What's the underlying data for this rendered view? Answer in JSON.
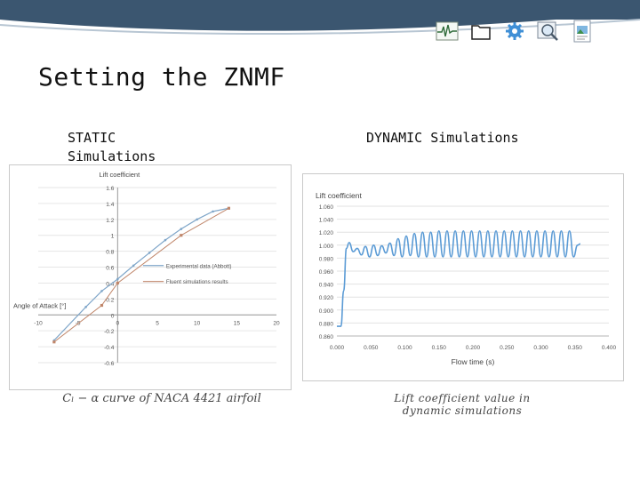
{
  "slide": {
    "title": "Setting the ZNMF",
    "static_heading_line1": "STATIC",
    "static_heading_line2": "Simulations",
    "dynamic_heading": "DYNAMIC Simulations",
    "static_caption": "Cₗ − α  curve of NACA 4421 airfoil",
    "dynamic_caption_line1": "Lift coefficient value in",
    "dynamic_caption_line2": "dynamic simulations"
  },
  "toolbar": {
    "icons": [
      "pulse-monitor-icon",
      "folder-icon",
      "gear-icon",
      "magnifier-icon",
      "document-image-icon"
    ]
  },
  "colors": {
    "header_band": "#3b5670",
    "series_experimental": "#7fa6c9",
    "series_fluent": "#c0866a",
    "series_dynamic": "#5b9bd5"
  },
  "chart_data": [
    {
      "type": "line",
      "ylabel": "Lift coefficient",
      "xlabel": "Angle of Attack [°]",
      "xlim": [
        -10,
        20
      ],
      "ylim": [
        -0.6,
        1.6
      ],
      "x_ticks": [
        "-10",
        "-5",
        "0",
        "5",
        "10",
        "15",
        "20"
      ],
      "y_ticks": [
        "1.6",
        "1.4",
        "1.2",
        "1",
        "0.8",
        "0.6",
        "0.4",
        "0.2",
        "0",
        "-0.2",
        "-0.4",
        "-0.6"
      ],
      "x_tick_values": [
        -10,
        -5,
        0,
        5,
        10,
        15,
        20
      ],
      "y_tick_values": [
        1.6,
        1.4,
        1.2,
        1.0,
        0.8,
        0.6,
        0.4,
        0.2,
        0,
        -0.2,
        -0.4,
        -0.6
      ],
      "legend_position": "right",
      "series": [
        {
          "name": "Experimental data (Abbott)",
          "x": [
            -8,
            -4,
            -2,
            0,
            2,
            4,
            6,
            8,
            10,
            12,
            14
          ],
          "y": [
            -0.32,
            0.1,
            0.3,
            0.45,
            0.62,
            0.78,
            0.94,
            1.08,
            1.2,
            1.3,
            1.34
          ]
        },
        {
          "name": "Fluent simulations results",
          "x": [
            -8,
            -2,
            0,
            8,
            14
          ],
          "y": [
            -0.34,
            0.12,
            0.4,
            1.0,
            1.34
          ]
        }
      ]
    },
    {
      "type": "line",
      "ylabel": "Lift coefficient",
      "xlabel": "Flow time (s)",
      "xlim": [
        0,
        0.4
      ],
      "ylim": [
        0.86,
        1.06
      ],
      "x_ticks": [
        "0.000",
        "0.050",
        "0.100",
        "0.150",
        "0.200",
        "0.250",
        "0.300",
        "0.350",
        "0.400"
      ],
      "y_ticks": [
        "1.060",
        "1.040",
        "1.020",
        "1.000",
        "0.980",
        "0.960",
        "0.940",
        "0.920",
        "0.900",
        "0.880",
        "0.860"
      ],
      "x_tick_values": [
        0,
        0.05,
        0.1,
        0.15,
        0.2,
        0.25,
        0.3,
        0.35,
        0.4
      ],
      "y_tick_values": [
        1.06,
        1.04,
        1.02,
        1.0,
        0.98,
        0.96,
        0.94,
        0.92,
        0.9,
        0.88,
        0.86
      ],
      "series": [
        {
          "x": [
            0.0,
            0.006,
            0.01,
            0.014,
            0.018,
            0.024,
            0.03,
            0.036,
            0.042,
            0.048,
            0.054,
            0.06,
            0.066,
            0.072,
            0.078,
            0.084,
            0.09,
            0.096,
            0.102,
            0.108,
            0.114,
            0.12,
            0.126,
            0.132,
            0.138,
            0.144,
            0.15,
            0.156,
            0.162,
            0.168,
            0.174,
            0.18,
            0.186,
            0.192,
            0.198,
            0.204,
            0.21,
            0.216,
            0.222,
            0.228,
            0.234,
            0.24,
            0.246,
            0.252,
            0.258,
            0.264,
            0.27,
            0.276,
            0.282,
            0.288,
            0.294,
            0.3,
            0.306,
            0.312,
            0.318,
            0.324,
            0.33,
            0.336,
            0.342,
            0.348,
            0.354,
            0.358
          ],
          "y": [
            0.875,
            0.875,
            0.93,
            0.995,
            1.004,
            0.99,
            0.995,
            0.985,
            0.998,
            0.982,
            1.0,
            0.984,
            0.999,
            0.988,
            1.003,
            0.984,
            1.01,
            0.982,
            1.014,
            0.984,
            1.018,
            0.982,
            1.02,
            0.982,
            1.02,
            0.982,
            1.022,
            0.982,
            1.022,
            0.982,
            1.022,
            0.982,
            1.022,
            0.982,
            1.022,
            0.982,
            1.022,
            0.982,
            1.022,
            0.982,
            1.022,
            0.982,
            1.022,
            0.982,
            1.022,
            0.982,
            1.022,
            0.982,
            1.022,
            0.982,
            1.022,
            0.982,
            1.022,
            0.982,
            1.022,
            0.982,
            1.022,
            0.982,
            1.022,
            0.982,
            1.0,
            1.002
          ]
        }
      ]
    }
  ]
}
